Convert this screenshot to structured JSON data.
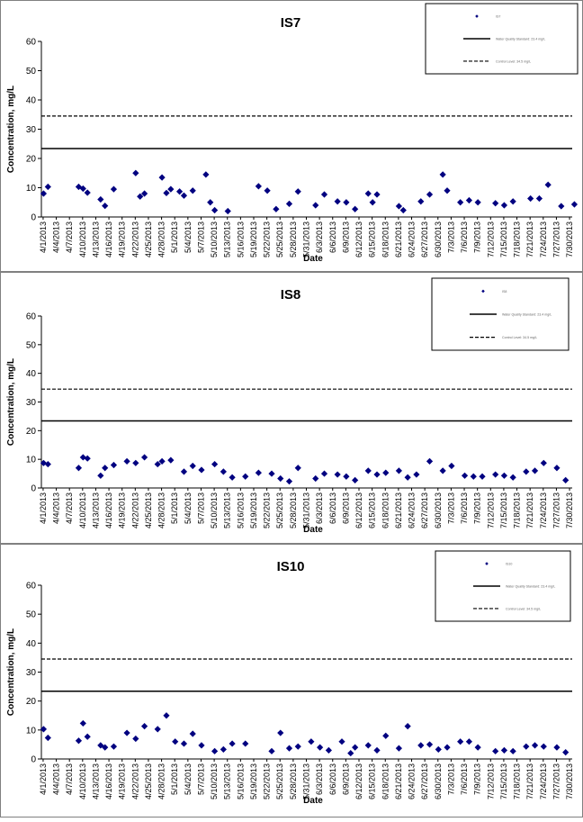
{
  "chart_data": [
    {
      "type": "scatter",
      "title": "IS7",
      "xlabel": "Date",
      "ylabel": "Concentration, mg/L",
      "ylim": [
        0,
        60
      ],
      "yticks": [
        0,
        10,
        20,
        30,
        40,
        50,
        60
      ],
      "grid": false,
      "legend_position": "top-right",
      "x_ticks": [
        "4/1/2013",
        "4/4/2013",
        "4/7/2013",
        "4/10/2013",
        "4/13/2013",
        "4/16/2013",
        "4/19/2013",
        "4/22/2013",
        "4/25/2013",
        "4/28/2013",
        "5/1/2013",
        "5/4/2013",
        "5/7/2013",
        "5/10/2013",
        "5/13/2013",
        "5/16/2013",
        "5/19/2013",
        "5/22/2013",
        "5/25/2013",
        "5/28/2013",
        "5/31/2013",
        "6/3/2013",
        "6/6/2013",
        "6/9/2013",
        "6/12/2013",
        "6/15/2013",
        "6/18/2013",
        "6/21/2013",
        "6/24/2013",
        "6/27/2013",
        "6/30/2013",
        "7/3/2013",
        "7/6/2013",
        "7/9/2013",
        "7/12/2013",
        "7/15/2013",
        "7/18/2013",
        "7/21/2013",
        "7/24/2013",
        "7/27/2013",
        "7/30/2013"
      ],
      "series": [
        {
          "name": "IS7",
          "color": "#000080",
          "marker": "diamond",
          "points": [
            [
              "4/1/2013",
              8.0
            ],
            [
              "4/2/2013",
              10.3
            ],
            [
              "4/9/2013",
              10.3
            ],
            [
              "4/10/2013",
              9.7
            ],
            [
              "4/11/2013",
              8.3
            ],
            [
              "4/14/2013",
              6.0
            ],
            [
              "4/15/2013",
              3.8
            ],
            [
              "4/17/2013",
              9.5
            ],
            [
              "4/22/2013",
              15.0
            ],
            [
              "4/23/2013",
              7.0
            ],
            [
              "4/24/2013",
              8.0
            ],
            [
              "4/28/2013",
              13.5
            ],
            [
              "4/29/2013",
              8.2
            ],
            [
              "4/30/2013",
              9.5
            ],
            [
              "5/2/2013",
              8.7
            ],
            [
              "5/3/2013",
              7.3
            ],
            [
              "5/5/2013",
              9.0
            ],
            [
              "5/8/2013",
              14.5
            ],
            [
              "5/9/2013",
              5.0
            ],
            [
              "5/10/2013",
              2.3
            ],
            [
              "5/13/2013",
              2.0
            ],
            [
              "5/20/2013",
              10.5
            ],
            [
              "5/22/2013",
              9.0
            ],
            [
              "5/24/2013",
              2.7
            ],
            [
              "5/27/2013",
              4.5
            ],
            [
              "5/29/2013",
              8.7
            ],
            [
              "6/2/2013",
              4.0
            ],
            [
              "6/4/2013",
              7.7
            ],
            [
              "6/7/2013",
              5.3
            ],
            [
              "6/9/2013",
              5.0
            ],
            [
              "6/11/2013",
              2.7
            ],
            [
              "6/14/2013",
              8.0
            ],
            [
              "6/15/2013",
              5.0
            ],
            [
              "6/16/2013",
              7.7
            ],
            [
              "6/21/2013",
              3.7
            ],
            [
              "6/22/2013",
              2.3
            ],
            [
              "6/26/2013",
              5.3
            ],
            [
              "6/28/2013",
              7.7
            ],
            [
              "7/1/2013",
              14.5
            ],
            [
              "7/2/2013",
              9.0
            ],
            [
              "7/5/2013",
              5.0
            ],
            [
              "7/7/2013",
              5.7
            ],
            [
              "7/9/2013",
              5.0
            ],
            [
              "7/13/2013",
              4.7
            ],
            [
              "7/15/2013",
              4.0
            ],
            [
              "7/17/2013",
              5.3
            ],
            [
              "7/21/2013",
              6.3
            ],
            [
              "7/23/2013",
              6.3
            ],
            [
              "7/25/2013",
              11.0
            ],
            [
              "7/28/2013",
              3.7
            ],
            [
              "7/31/2013",
              4.3
            ]
          ]
        },
        {
          "name": "Water Quality Standard: 23.4 mg/L",
          "type": "line",
          "style": "solid",
          "value": 23.4
        },
        {
          "name": "Control Level: 34.5 mg/L",
          "type": "line",
          "style": "dashed",
          "value": 34.5
        }
      ]
    },
    {
      "type": "scatter",
      "title": "IS8",
      "xlabel": "Date",
      "ylabel": "Concentration, mg/L",
      "ylim": [
        0,
        60
      ],
      "yticks": [
        0,
        10,
        20,
        30,
        40,
        50,
        60
      ],
      "grid": false,
      "legend_position": "top-right",
      "x_ticks": [
        "4/1/2013",
        "4/4/2013",
        "4/7/2013",
        "4/10/2013",
        "4/13/2013",
        "4/16/2013",
        "4/19/2013",
        "4/22/2013",
        "4/25/2013",
        "4/28/2013",
        "5/1/2013",
        "5/4/2013",
        "5/7/2013",
        "5/10/2013",
        "5/13/2013",
        "5/16/2013",
        "5/19/2013",
        "5/22/2013",
        "5/25/2013",
        "5/28/2013",
        "5/31/2013",
        "6/3/2013",
        "6/6/2013",
        "6/9/2013",
        "6/12/2013",
        "6/15/2013",
        "6/18/2013",
        "6/21/2013",
        "6/24/2013",
        "6/27/2013",
        "6/30/2013",
        "7/3/2013",
        "7/6/2013",
        "7/9/2013",
        "7/12/2013",
        "7/15/2013",
        "7/18/2013",
        "7/21/2013",
        "7/24/2013",
        "7/27/2013",
        "7/30/2013"
      ],
      "series": [
        {
          "name": "IS8",
          "color": "#000080",
          "marker": "diamond",
          "points": [
            [
              "4/1/2013",
              8.7
            ],
            [
              "4/2/2013",
              8.3
            ],
            [
              "4/9/2013",
              7.0
            ],
            [
              "4/10/2013",
              10.7
            ],
            [
              "4/11/2013",
              10.3
            ],
            [
              "4/14/2013",
              4.3
            ],
            [
              "4/15/2013",
              7.0
            ],
            [
              "4/17/2013",
              8.0
            ],
            [
              "4/20/2013",
              9.3
            ],
            [
              "4/22/2013",
              8.7
            ],
            [
              "4/24/2013",
              10.7
            ],
            [
              "4/27/2013",
              8.3
            ],
            [
              "4/28/2013",
              9.3
            ],
            [
              "4/30/2013",
              9.7
            ],
            [
              "5/3/2013",
              5.7
            ],
            [
              "5/5/2013",
              7.7
            ],
            [
              "5/7/2013",
              6.3
            ],
            [
              "5/10/2013",
              8.3
            ],
            [
              "5/12/2013",
              5.7
            ],
            [
              "5/14/2013",
              3.7
            ],
            [
              "5/17/2013",
              4.0
            ],
            [
              "5/20/2013",
              5.3
            ],
            [
              "5/23/2013",
              5.0
            ],
            [
              "5/25/2013",
              3.3
            ],
            [
              "5/27/2013",
              2.3
            ],
            [
              "5/29/2013",
              7.0
            ],
            [
              "6/2/2013",
              3.3
            ],
            [
              "6/4/2013",
              5.0
            ],
            [
              "6/7/2013",
              4.7
            ],
            [
              "6/9/2013",
              4.0
            ],
            [
              "6/11/2013",
              2.7
            ],
            [
              "6/14/2013",
              6.0
            ],
            [
              "6/16/2013",
              4.7
            ],
            [
              "6/18/2013",
              5.3
            ],
            [
              "6/21/2013",
              6.0
            ],
            [
              "6/23/2013",
              3.7
            ],
            [
              "6/25/2013",
              4.7
            ],
            [
              "6/28/2013",
              9.3
            ],
            [
              "7/1/2013",
              6.0
            ],
            [
              "7/3/2013",
              7.7
            ],
            [
              "7/6/2013",
              4.3
            ],
            [
              "7/8/2013",
              4.0
            ],
            [
              "7/10/2013",
              4.0
            ],
            [
              "7/13/2013",
              4.7
            ],
            [
              "7/15/2013",
              4.3
            ],
            [
              "7/17/2013",
              3.7
            ],
            [
              "7/20/2013",
              5.7
            ],
            [
              "7/22/2013",
              6.0
            ],
            [
              "7/24/2013",
              8.7
            ],
            [
              "7/27/2013",
              7.0
            ],
            [
              "7/29/2013",
              2.7
            ]
          ]
        },
        {
          "name": "Water Quality Standard: 23.4 mg/L",
          "type": "line",
          "style": "solid",
          "value": 23.4
        },
        {
          "name": "Control Level: 34.5 mg/L",
          "type": "line",
          "style": "dashed",
          "value": 34.5
        }
      ]
    },
    {
      "type": "scatter",
      "title": "IS10",
      "xlabel": "Date",
      "ylabel": "Concentration, mg/L",
      "ylim": [
        0,
        60
      ],
      "yticks": [
        0,
        10,
        20,
        30,
        40,
        50,
        60
      ],
      "grid": false,
      "legend_position": "top-right",
      "x_ticks": [
        "4/1/2013",
        "4/4/2013",
        "4/7/2013",
        "4/10/2013",
        "4/13/2013",
        "4/16/2013",
        "4/19/2013",
        "4/22/2013",
        "4/25/2013",
        "4/28/2013",
        "5/1/2013",
        "5/4/2013",
        "5/7/2013",
        "5/10/2013",
        "5/13/2013",
        "5/16/2013",
        "5/19/2013",
        "5/22/2013",
        "5/25/2013",
        "5/28/2013",
        "5/31/2013",
        "6/3/2013",
        "6/6/2013",
        "6/9/2013",
        "6/12/2013",
        "6/15/2013",
        "6/18/2013",
        "6/21/2013",
        "6/24/2013",
        "6/27/2013",
        "6/30/2013",
        "7/3/2013",
        "7/6/2013",
        "7/9/2013",
        "7/12/2013",
        "7/15/2013",
        "7/18/2013",
        "7/21/2013",
        "7/24/2013",
        "7/27/2013",
        "7/30/2013"
      ],
      "series": [
        {
          "name": "IS10",
          "color": "#000080",
          "marker": "diamond",
          "points": [
            [
              "4/1/2013",
              10.3
            ],
            [
              "4/2/2013",
              7.3
            ],
            [
              "4/9/2013",
              6.3
            ],
            [
              "4/10/2013",
              12.3
            ],
            [
              "4/11/2013",
              7.7
            ],
            [
              "4/14/2013",
              4.7
            ],
            [
              "4/15/2013",
              4.0
            ],
            [
              "4/17/2013",
              4.3
            ],
            [
              "4/20/2013",
              9.0
            ],
            [
              "4/22/2013",
              7.0
            ],
            [
              "4/24/2013",
              11.3
            ],
            [
              "4/27/2013",
              10.3
            ],
            [
              "4/29/2013",
              15.0
            ],
            [
              "5/1/2013",
              6.0
            ],
            [
              "5/3/2013",
              5.3
            ],
            [
              "5/5/2013",
              8.7
            ],
            [
              "5/7/2013",
              4.7
            ],
            [
              "5/10/2013",
              2.7
            ],
            [
              "5/12/2013",
              3.3
            ],
            [
              "5/14/2013",
              5.3
            ],
            [
              "5/17/2013",
              5.3
            ],
            [
              "5/23/2013",
              2.7
            ],
            [
              "5/25/2013",
              9.0
            ],
            [
              "5/27/2013",
              3.7
            ],
            [
              "5/29/2013",
              4.3
            ],
            [
              "6/1/2013",
              6.0
            ],
            [
              "6/3/2013",
              4.0
            ],
            [
              "6/5/2013",
              3.0
            ],
            [
              "6/8/2013",
              6.0
            ],
            [
              "6/10/2013",
              2.0
            ],
            [
              "6/11/2013",
              4.0
            ],
            [
              "6/14/2013",
              4.7
            ],
            [
              "6/16/2013",
              3.0
            ],
            [
              "6/18/2013",
              8.0
            ],
            [
              "6/21/2013",
              3.7
            ],
            [
              "6/23/2013",
              11.3
            ],
            [
              "6/26/2013",
              4.7
            ],
            [
              "6/28/2013",
              5.0
            ],
            [
              "6/30/2013",
              3.3
            ],
            [
              "7/2/2013",
              4.0
            ],
            [
              "7/5/2013",
              6.0
            ],
            [
              "7/7/2013",
              6.0
            ],
            [
              "7/9/2013",
              4.0
            ],
            [
              "7/13/2013",
              2.7
            ],
            [
              "7/15/2013",
              3.0
            ],
            [
              "7/17/2013",
              2.7
            ],
            [
              "7/20/2013",
              4.3
            ],
            [
              "7/22/2013",
              4.7
            ],
            [
              "7/24/2013",
              4.3
            ],
            [
              "7/27/2013",
              4.0
            ],
            [
              "7/29/2013",
              2.3
            ]
          ]
        },
        {
          "name": "Water Quality Standard: 23.4 mg/L",
          "type": "line",
          "style": "solid",
          "value": 23.4
        },
        {
          "name": "Control Level: 34.5 mg/L",
          "type": "line",
          "style": "dashed",
          "value": 34.5
        }
      ]
    }
  ]
}
